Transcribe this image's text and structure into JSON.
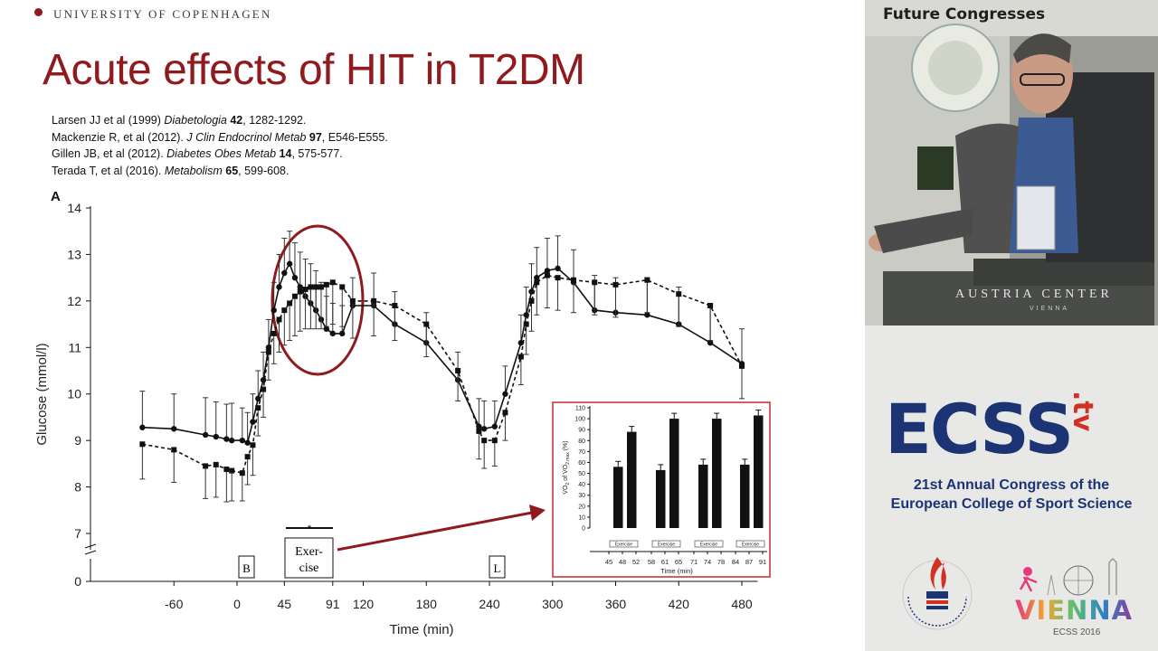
{
  "header": {
    "university": "UNIVERSITY OF COPENHAGEN"
  },
  "slide": {
    "title": "Acute effects of HIT in T2DM",
    "references": [
      {
        "pre": "Larsen JJ et al (1999) ",
        "journal": "Diabetologia",
        "volume": "42",
        "pages": ", 1282-1292."
      },
      {
        "pre": "Mackenzie R, et al (2012). ",
        "journal": "J Clin Endocrinol Metab",
        "volume": "97",
        "pages": ", E546-E555."
      },
      {
        "pre": "Gillen JB, et al (2012). ",
        "journal": "Diabetes Obes Metab",
        "volume": "14",
        "pages": ", 575-577."
      },
      {
        "pre": "Terada T, et al (2016). ",
        "journal": "Metabolism",
        "volume": "65",
        "pages": ", 599-608."
      }
    ],
    "panel_letter": "A",
    "markers": {
      "B": "B",
      "exercise_line1": "Exer-",
      "exercise_line2": "cise",
      "L": "L",
      "asterisk": "*"
    }
  },
  "colors": {
    "accent": "#901a1e",
    "ink": "#111111",
    "ecss_blue": "#1c3374",
    "ecss_red": "#d03122"
  },
  "chart_data": [
    {
      "type": "line",
      "xlabel": "Time (min)",
      "ylabel": "Glucose (mmol/l)",
      "xlim": [
        -105,
        495
      ],
      "ylim": [
        7,
        14
      ],
      "yticks": [
        "7",
        "8",
        "9",
        "10",
        "11",
        "12",
        "13",
        "14"
      ],
      "y_zero_label": "0",
      "xticks": [
        {
          "value": -60,
          "label": "-60"
        },
        {
          "value": 0,
          "label": "0"
        },
        {
          "value": 45,
          "label": "45"
        },
        {
          "value": 91,
          "label": "91"
        },
        {
          "value": 120,
          "label": "120"
        },
        {
          "value": 180,
          "label": "180"
        },
        {
          "value": 240,
          "label": "240"
        },
        {
          "value": 300,
          "label": "300"
        },
        {
          "value": 360,
          "label": "360"
        },
        {
          "value": 420,
          "label": "420"
        },
        {
          "value": 480,
          "label": "480"
        }
      ],
      "series": [
        {
          "style": "solid",
          "marker": "circle",
          "points": [
            [
              -90,
              9.28,
              0.78
            ],
            [
              -60,
              9.25,
              0.75
            ],
            [
              -30,
              9.12,
              0.8
            ],
            [
              -20,
              9.08,
              0.75
            ],
            [
              -10,
              9.03,
              0.75
            ],
            [
              -5,
              9.0,
              0.8
            ],
            [
              5,
              9.0,
              0.7
            ],
            [
              10,
              8.95,
              0.65
            ],
            [
              15,
              9.4,
              0.6
            ],
            [
              20,
              9.9,
              0.6
            ],
            [
              25,
              10.3,
              0.6
            ],
            [
              30,
              11.0,
              0.6
            ],
            [
              35,
              11.8,
              0.6
            ],
            [
              40,
              12.3,
              0.7
            ],
            [
              45,
              12.6,
              0.75
            ],
            [
              50,
              12.8,
              0.7
            ],
            [
              55,
              12.5,
              0.75
            ],
            [
              60,
              12.3,
              0.75
            ],
            [
              65,
              12.1,
              0.8
            ],
            [
              70,
              11.95,
              0.85
            ],
            [
              75,
              11.8,
              0.85
            ],
            [
              80,
              11.6,
              0.8
            ],
            [
              85,
              11.4,
              0.7
            ],
            [
              91,
              11.3,
              0.65
            ],
            [
              100,
              11.3,
              0.6
            ],
            [
              110,
              11.9,
              0.6
            ],
            [
              130,
              11.9,
              0.7
            ],
            [
              150,
              11.5,
              0.7
            ],
            [
              180,
              11.1,
              0.65
            ],
            [
              210,
              10.3,
              0.6
            ],
            [
              230,
              9.3,
              0.6
            ],
            [
              235,
              9.25,
              0.6
            ],
            [
              245,
              9.3,
              0.55
            ],
            [
              255,
              10.0,
              0.6
            ],
            [
              270,
              11.1,
              0.6
            ],
            [
              275,
              11.7,
              0.6
            ],
            [
              280,
              12.2,
              0.6
            ],
            [
              285,
              12.5,
              0.65
            ],
            [
              295,
              12.65,
              0.7
            ],
            [
              305,
              12.7,
              0.7
            ],
            [
              320,
              12.4,
              0.7
            ],
            [
              340,
              11.8,
              0.75
            ],
            [
              360,
              11.75,
              0.75
            ],
            [
              390,
              11.7,
              0.8
            ],
            [
              420,
              11.5,
              0.8
            ],
            [
              450,
              11.1,
              0.8
            ],
            [
              480,
              10.65,
              0.75
            ]
          ]
        },
        {
          "style": "dashed",
          "marker": "square",
          "points": [
            [
              -90,
              8.92,
              0.75
            ],
            [
              -60,
              8.8,
              0.7
            ],
            [
              -30,
              8.45,
              0.7
            ],
            [
              -20,
              8.48,
              0.7
            ],
            [
              -10,
              8.38,
              0.7
            ],
            [
              -5,
              8.35,
              0.65
            ],
            [
              5,
              8.3,
              0.6
            ],
            [
              10,
              8.65,
              0.6
            ],
            [
              15,
              8.9,
              0.65
            ],
            [
              20,
              9.7,
              0.6
            ],
            [
              25,
              10.1,
              0.6
            ],
            [
              30,
              10.9,
              0.6
            ],
            [
              35,
              11.3,
              0.65
            ],
            [
              40,
              11.6,
              0.7
            ],
            [
              45,
              11.8,
              0.75
            ],
            [
              50,
              11.95,
              0.8
            ],
            [
              55,
              12.1,
              0.85
            ],
            [
              60,
              12.2,
              0.85
            ],
            [
              65,
              12.25,
              0.85
            ],
            [
              70,
              12.3,
              0.9
            ],
            [
              75,
              12.3,
              0.9
            ],
            [
              80,
              12.3,
              0.9
            ],
            [
              85,
              12.35,
              0.9
            ],
            [
              91,
              12.4,
              0.9
            ],
            [
              100,
              12.3,
              0.85
            ],
            [
              110,
              12.0,
              0.8
            ],
            [
              130,
              12.0,
              0.75
            ],
            [
              150,
              11.9,
              0.75
            ],
            [
              180,
              11.5,
              0.7
            ],
            [
              210,
              10.5,
              0.65
            ],
            [
              230,
              9.2,
              0.6
            ],
            [
              235,
              9.0,
              0.6
            ],
            [
              245,
              9.0,
              0.55
            ],
            [
              255,
              9.6,
              0.6
            ],
            [
              270,
              10.8,
              0.6
            ],
            [
              275,
              11.5,
              0.65
            ],
            [
              280,
              12.0,
              0.65
            ],
            [
              285,
              12.4,
              0.7
            ],
            [
              295,
              12.55,
              0.7
            ],
            [
              305,
              12.5,
              0.7
            ],
            [
              320,
              12.45,
              0.7
            ],
            [
              340,
              12.4,
              0.7
            ],
            [
              360,
              12.35,
              0.7
            ],
            [
              390,
              12.45,
              0.7
            ],
            [
              420,
              12.15,
              0.7
            ],
            [
              450,
              11.9,
              0.75
            ],
            [
              480,
              10.6,
              0.7
            ]
          ]
        }
      ]
    },
    {
      "type": "bar",
      "ylabel_main": "V̇O",
      "ylabel_rest": " of V̇O",
      "ylabel_tail": " (%)",
      "ylabel_sub": "2",
      "ylabel_sub2": "2 max",
      "xlabel": "Time (min)",
      "ylim": [
        0,
        110
      ],
      "yticks": [
        "0",
        "10",
        "20",
        "30",
        "40",
        "50",
        "60",
        "70",
        "80",
        "90",
        "100",
        "110"
      ],
      "groups": [
        {
          "label": "Exercise",
          "bars": [
            {
              "x": "48",
              "value": 56
            },
            {
              "x": "52",
              "value": 88
            }
          ],
          "tick_labels": [
            "45",
            "48",
            "52"
          ]
        },
        {
          "label": "Exercise",
          "bars": [
            {
              "x": "61",
              "value": 53
            },
            {
              "x": "65",
              "value": 100
            }
          ],
          "tick_labels": [
            "58",
            "61",
            "65"
          ]
        },
        {
          "label": "Exercise",
          "bars": [
            {
              "x": "74",
              "value": 58
            },
            {
              "x": "78",
              "value": 100
            }
          ],
          "tick_labels": [
            "71",
            "74",
            "78"
          ]
        },
        {
          "label": "Exercise",
          "bars": [
            {
              "x": "87",
              "value": 58
            },
            {
              "x": "91",
              "value": 103
            }
          ],
          "tick_labels": [
            "84",
            "87",
            "91"
          ]
        }
      ]
    }
  ],
  "sidebar": {
    "video_banner": "Future Congresses",
    "venue": "AUSTRIA CENTER",
    "venue_city": "VIENNA",
    "logo_main": "ECSS",
    "logo_suffix": ".tv",
    "congress_line1": "21st Annual Congress of the",
    "congress_line2": "European College of Sport Science",
    "vienna": "VIENNA",
    "ecss2016": "ECSS 2016"
  }
}
